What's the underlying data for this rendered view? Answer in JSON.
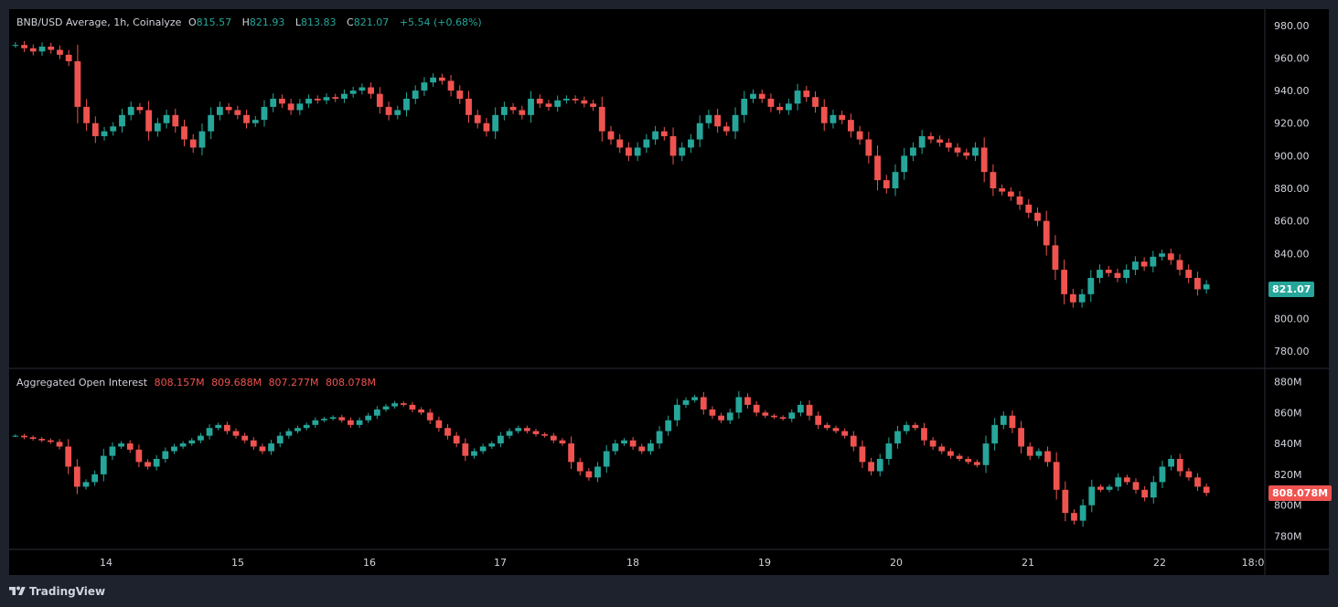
{
  "main_legend": {
    "symbol": "BNB/USD Average, 1h, Coinalyze",
    "o_label": "O",
    "o_value": "815.57",
    "h_label": "H",
    "h_value": "821.93",
    "l_label": "L",
    "l_value": "813.83",
    "c_label": "C",
    "c_value": "821.07",
    "change": "+5.54 (+0.68%)"
  },
  "oi_legend": {
    "title": "Aggregated Open Interest",
    "o": "808.157M",
    "h": "809.688M",
    "l": "807.277M",
    "c": "808.078M"
  },
  "last_price_label": "821.07",
  "last_oi_label": "808.078M",
  "footer": {
    "brand": "TradingView"
  },
  "colors": {
    "up": "#26a69a",
    "down": "#ef5350",
    "background": "#000000",
    "frame": "#1e222d",
    "grid": "#2a2e39"
  },
  "chart_data": [
    {
      "type": "candlestick",
      "title": "BNB/USD Average, 1h, Coinalyze",
      "ylim": [
        770,
        990
      ],
      "y_ticks": [
        "980.00",
        "960.00",
        "940.00",
        "920.00",
        "900.00",
        "880.00",
        "860.00",
        "840.00",
        "820.00",
        "800.00",
        "780.00"
      ],
      "x_ticks": [
        "14",
        "15",
        "16",
        "17",
        "18",
        "19",
        "20",
        "21",
        "22",
        "18:0"
      ],
      "series_approx_closes": [
        968,
        966,
        964,
        967,
        965,
        962,
        958,
        930,
        920,
        912,
        915,
        918,
        925,
        930,
        928,
        915,
        920,
        925,
        918,
        910,
        905,
        915,
        925,
        930,
        928,
        925,
        920,
        922,
        930,
        935,
        932,
        928,
        932,
        935,
        934,
        936,
        935,
        938,
        940,
        942,
        938,
        930,
        925,
        928,
        935,
        940,
        945,
        948,
        946,
        940,
        935,
        925,
        920,
        915,
        925,
        930,
        928,
        925,
        935,
        932,
        930,
        934,
        935,
        934,
        932,
        930,
        915,
        910,
        905,
        900,
        905,
        910,
        915,
        912,
        900,
        905,
        910,
        920,
        925,
        918,
        915,
        925,
        935,
        938,
        935,
        930,
        928,
        932,
        940,
        936,
        930,
        920,
        925,
        922,
        915,
        910,
        900,
        885,
        880,
        890,
        900,
        905,
        912,
        910,
        908,
        905,
        902,
        900,
        905,
        890,
        880,
        878,
        875,
        870,
        865,
        860,
        845,
        830,
        815,
        810,
        815,
        825,
        830,
        828,
        825,
        830,
        835,
        832,
        838,
        840,
        836,
        830,
        825,
        818,
        821
      ]
    },
    {
      "type": "candlestick",
      "title": "Aggregated Open Interest",
      "ylim": [
        772,
        888
      ],
      "y_ticks": [
        "880M",
        "860M",
        "840M",
        "820M",
        "800M",
        "780M"
      ],
      "unit": "M",
      "series_approx_closes": [
        845,
        844,
        843,
        842,
        841,
        838,
        825,
        812,
        815,
        820,
        832,
        838,
        840,
        836,
        828,
        825,
        830,
        835,
        838,
        840,
        842,
        845,
        850,
        852,
        848,
        845,
        842,
        838,
        835,
        840,
        845,
        848,
        850,
        852,
        855,
        856,
        857,
        855,
        852,
        855,
        858,
        862,
        864,
        866,
        865,
        862,
        860,
        855,
        850,
        845,
        840,
        832,
        835,
        838,
        840,
        845,
        848,
        850,
        848,
        846,
        845,
        842,
        840,
        828,
        822,
        818,
        825,
        835,
        840,
        842,
        838,
        835,
        840,
        848,
        855,
        865,
        868,
        870,
        862,
        858,
        855,
        860,
        870,
        865,
        860,
        858,
        857,
        856,
        860,
        865,
        858,
        852,
        850,
        848,
        845,
        838,
        828,
        822,
        830,
        840,
        848,
        852,
        850,
        842,
        838,
        835,
        832,
        830,
        828,
        826,
        840,
        852,
        858,
        850,
        838,
        832,
        835,
        828,
        810,
        795,
        790,
        800,
        812,
        810,
        812,
        818,
        815,
        810,
        805,
        815,
        825,
        830,
        822,
        818,
        812,
        808
      ]
    }
  ]
}
